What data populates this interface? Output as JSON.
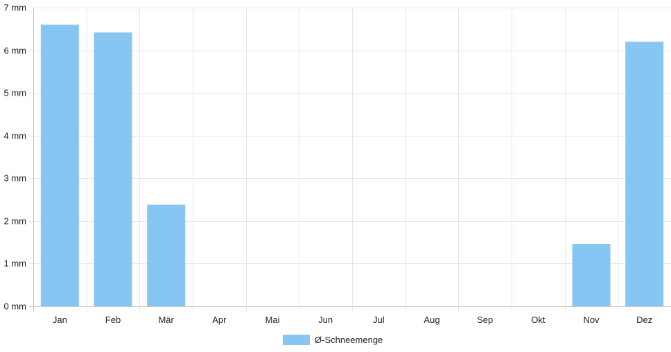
{
  "chart_data": {
    "type": "bar",
    "categories": [
      "Jan",
      "Feb",
      "Mär",
      "Apr",
      "Mai",
      "Jun",
      "Jul",
      "Aug",
      "Sep",
      "Okt",
      "Nov",
      "Dez"
    ],
    "series": [
      {
        "name": "Ø-Schneemenge",
        "values": [
          6.6,
          6.42,
          2.38,
          0,
          0,
          0,
          0,
          0,
          0,
          0,
          1.46,
          6.2
        ],
        "color": "#87c6f2"
      }
    ],
    "y_ticks": [
      0,
      1,
      2,
      3,
      4,
      5,
      6,
      7
    ],
    "y_unit": "mm",
    "ylim": [
      0,
      7
    ],
    "grid": true,
    "legend_position": "bottom",
    "colors": {
      "grid": "#e5e5e5",
      "axis": "#c8c8c8",
      "bar": "#87c6f2"
    }
  }
}
